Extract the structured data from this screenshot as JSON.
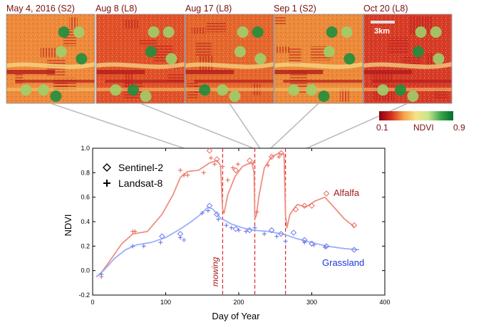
{
  "panels": [
    {
      "label": "May 4, 2016 (S2)"
    },
    {
      "label": "Aug 8 (L8)"
    },
    {
      "label": "Aug 17 (L8)"
    },
    {
      "label": "Sep 1 (S2)"
    },
    {
      "label": "Oct 20 (L8)"
    }
  ],
  "scale_bar": "3km",
  "colorbar": {
    "min": "0.1",
    "max": "0.9",
    "label": "NDVI",
    "colors": [
      "#8b0013",
      "#d7301f",
      "#f4a24a",
      "#f6e48a",
      "#c7e58c",
      "#3aa64a",
      "#006d2c"
    ]
  },
  "colors": {
    "alfalfa": "#f08e7f",
    "alfalfa_label": "#a51c1c",
    "grassland": "#9bb0ff",
    "grassland_label": "#1f35d6",
    "mowing": "#e2242b",
    "connector": "#bdbdbd"
  },
  "chart_data": {
    "type": "scatter",
    "xlabel": "Day of Year",
    "ylabel": "NDVI",
    "xlim": [
      0,
      400
    ],
    "ylim": [
      -0.2,
      1.0
    ],
    "xticks": [
      "0",
      "100",
      "200",
      "300",
      "400"
    ],
    "yticks": [
      "-0.2",
      "0.0",
      "0.2",
      "0.4",
      "0.6",
      "0.8",
      "1.0"
    ],
    "legend": [
      {
        "label": "Sentinel-2",
        "marker": "diamond"
      },
      {
        "label": "Landsat-8",
        "marker": "plus"
      }
    ],
    "annotations": {
      "mowing": "mowing",
      "alfalfa": "Alfalfa",
      "grassland": "Grassland"
    },
    "mowing_days": [
      178,
      222,
      264
    ],
    "panel_dates_doy": [
      125,
      220,
      229,
      244,
      293
    ],
    "series": [
      {
        "name": "Alfalfa",
        "curve": [
          [
            5,
            -0.05
          ],
          [
            10,
            -0.03
          ],
          [
            20,
            0.05
          ],
          [
            40,
            0.22
          ],
          [
            55,
            0.3
          ],
          [
            75,
            0.32
          ],
          [
            95,
            0.46
          ],
          [
            110,
            0.62
          ],
          [
            120,
            0.76
          ],
          [
            130,
            0.81
          ],
          [
            145,
            0.82
          ],
          [
            160,
            0.88
          ],
          [
            170,
            0.9
          ],
          [
            175,
            0.86
          ],
          [
            178,
            0.5
          ],
          [
            180,
            0.47
          ],
          [
            185,
            0.62
          ],
          [
            195,
            0.77
          ],
          [
            205,
            0.85
          ],
          [
            212,
            0.87
          ],
          [
            218,
            0.88
          ],
          [
            221,
            0.8
          ],
          [
            222,
            0.42
          ],
          [
            224,
            0.45
          ],
          [
            228,
            0.62
          ],
          [
            235,
            0.84
          ],
          [
            245,
            0.93
          ],
          [
            255,
            0.96
          ],
          [
            262,
            0.95
          ],
          [
            264,
            0.45
          ],
          [
            266,
            0.35
          ],
          [
            270,
            0.46
          ],
          [
            280,
            0.54
          ],
          [
            292,
            0.52
          ],
          [
            305,
            0.57
          ],
          [
            318,
            0.6
          ],
          [
            330,
            0.52
          ],
          [
            345,
            0.42
          ],
          [
            358,
            0.36
          ]
        ],
        "sentinel2": [
          [
            160,
            0.98
          ],
          [
            170,
            0.91
          ],
          [
            196,
            0.82
          ],
          [
            215,
            0.9
          ],
          [
            245,
            0.93
          ],
          [
            258,
            0.96
          ],
          [
            278,
            0.5
          ],
          [
            290,
            0.53
          ],
          [
            300,
            0.53
          ],
          [
            320,
            0.63
          ],
          [
            358,
            0.37
          ]
        ],
        "landsat8": [
          [
            12,
            -0.05
          ],
          [
            55,
            0.32
          ],
          [
            58,
            0.32
          ],
          [
            120,
            0.82
          ],
          [
            125,
            0.78
          ],
          [
            130,
            0.78
          ],
          [
            152,
            0.8
          ],
          [
            162,
            0.92
          ],
          [
            167,
            0.87
          ],
          [
            178,
            0.85
          ],
          [
            185,
            0.74
          ],
          [
            192,
            0.84
          ],
          [
            199,
            0.87
          ],
          [
            220,
            0.88
          ],
          [
            225,
            0.48
          ],
          [
            240,
            0.86
          ],
          [
            255,
            0.93
          ]
        ]
      },
      {
        "name": "Grassland",
        "curve": [
          [
            5,
            -0.05
          ],
          [
            15,
            0.0
          ],
          [
            30,
            0.1
          ],
          [
            45,
            0.17
          ],
          [
            60,
            0.21
          ],
          [
            80,
            0.23
          ],
          [
            100,
            0.27
          ],
          [
            120,
            0.34
          ],
          [
            135,
            0.4
          ],
          [
            148,
            0.46
          ],
          [
            158,
            0.52
          ],
          [
            165,
            0.5
          ],
          [
            175,
            0.43
          ],
          [
            190,
            0.38
          ],
          [
            205,
            0.35
          ],
          [
            220,
            0.33
          ],
          [
            240,
            0.32
          ],
          [
            260,
            0.3
          ],
          [
            280,
            0.26
          ],
          [
            300,
            0.23
          ],
          [
            320,
            0.2
          ],
          [
            345,
            0.18
          ],
          [
            365,
            0.17
          ]
        ],
        "sentinel2": [
          [
            95,
            0.28
          ],
          [
            120,
            0.3
          ],
          [
            160,
            0.53
          ],
          [
            170,
            0.46
          ],
          [
            196,
            0.34
          ],
          [
            215,
            0.33
          ],
          [
            245,
            0.33
          ],
          [
            258,
            0.3
          ],
          [
            275,
            0.31
          ],
          [
            290,
            0.25
          ],
          [
            300,
            0.22
          ],
          [
            320,
            0.2
          ],
          [
            358,
            0.17
          ]
        ],
        "landsat8": [
          [
            12,
            -0.03
          ],
          [
            55,
            0.2
          ],
          [
            70,
            0.2
          ],
          [
            93,
            0.23
          ],
          [
            120,
            0.27
          ],
          [
            125,
            0.25
          ],
          [
            150,
            0.47
          ],
          [
            158,
            0.49
          ],
          [
            172,
            0.42
          ],
          [
            183,
            0.37
          ],
          [
            190,
            0.35
          ],
          [
            200,
            0.33
          ],
          [
            210,
            0.32
          ],
          [
            222,
            0.35
          ],
          [
            235,
            0.3
          ],
          [
            252,
            0.28
          ],
          [
            264,
            0.24
          ],
          [
            290,
            0.23
          ],
          [
            303,
            0.21
          ],
          [
            318,
            0.19
          ]
        ]
      }
    ]
  }
}
